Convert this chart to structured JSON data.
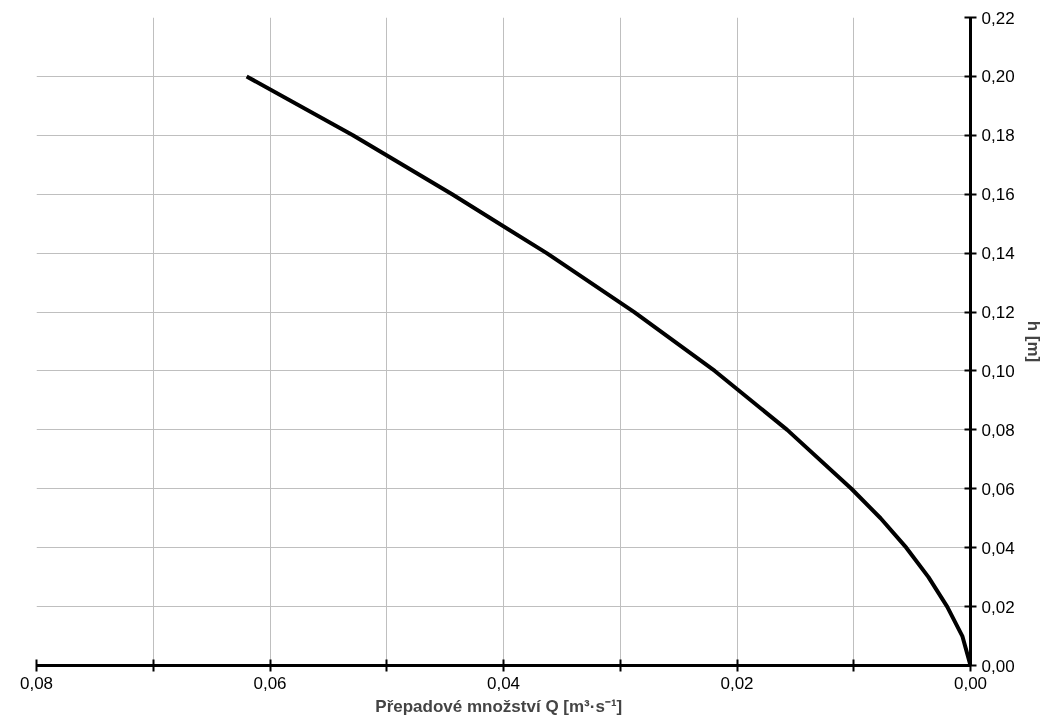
{
  "chart_data": {
    "type": "line",
    "xlabel": "Přepadové množství   Q [m³·s⁻¹]",
    "ylabel": "h [m]",
    "x": [
      0,
      0.0007,
      0.002,
      0.0036,
      0.0055,
      0.0077,
      0.0102,
      0.0157,
      0.0219,
      0.0288,
      0.0363,
      0.0444,
      0.0529,
      0.062
    ],
    "series": [
      {
        "color": "#000000",
        "values": [
          0,
          0.01,
          0.02,
          0.03,
          0.04,
          0.05,
          0.06,
          0.08,
          0.1,
          0.12,
          0.14,
          0.16,
          0.18,
          0.2
        ]
      }
    ],
    "xlim": [
      0.08,
      0
    ],
    "ylim": [
      0,
      0.22
    ],
    "xticks": [
      {
        "value": 0.08,
        "label": "0,08"
      },
      {
        "value": 0.07,
        "label": null
      },
      {
        "value": 0.06,
        "label": "0,06"
      },
      {
        "value": 0.05,
        "label": null
      },
      {
        "value": 0.04,
        "label": "0,04"
      },
      {
        "value": 0.03,
        "label": null
      },
      {
        "value": 0.02,
        "label": "0,02"
      },
      {
        "value": 0.01,
        "label": null
      },
      {
        "value": 0,
        "label": "0,00"
      }
    ],
    "yticks": [
      {
        "value": 0,
        "label": "0,00"
      },
      {
        "value": 0.02,
        "label": "0,02"
      },
      {
        "value": 0.04,
        "label": "0,04"
      },
      {
        "value": 0.06,
        "label": "0,06"
      },
      {
        "value": 0.08,
        "label": "0,08"
      },
      {
        "value": 0.1,
        "label": "0,10"
      },
      {
        "value": 0.12,
        "label": "0,12"
      },
      {
        "value": 0.14,
        "label": "0,14"
      },
      {
        "value": 0.16,
        "label": "0,16"
      },
      {
        "value": 0.18,
        "label": "0,18"
      },
      {
        "value": 0.2,
        "label": "0,20"
      },
      {
        "value": 0.22,
        "label": "0,22"
      }
    ],
    "grid": true,
    "marker": "none",
    "line_style": "solid"
  }
}
